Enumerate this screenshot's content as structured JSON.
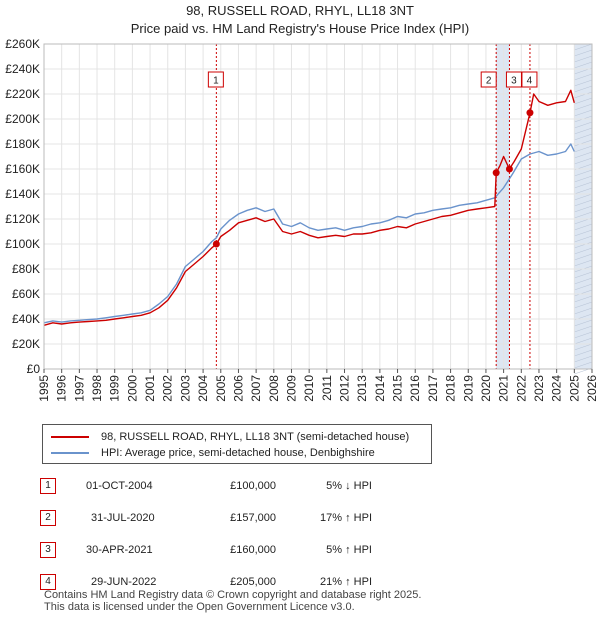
{
  "titles": {
    "line1": "98, RUSSELL ROAD, RHYL, LL18 3NT",
    "line2": "Price paid vs. HM Land Registry's House Price Index (HPI)"
  },
  "colors": {
    "price": "#cc0000",
    "hpi": "#6a93cc",
    "shade": "#dde6f2",
    "marker": "#cc0000",
    "grid": "#e4e4e4"
  },
  "legend": {
    "price_label": "98, RUSSELL ROAD, RHYL, LL18 3NT (semi-detached house)",
    "hpi_label": "HPI: Average price, semi-detached house, Denbighshire"
  },
  "transactions": [
    {
      "num": "1",
      "date": "01-OCT-2004",
      "price": "£100,000",
      "hpi": "5% ↓ HPI"
    },
    {
      "num": "2",
      "date": "31-JUL-2020",
      "price": "£157,000",
      "hpi": "17% ↑ HPI"
    },
    {
      "num": "3",
      "date": "30-APR-2021",
      "price": "£160,000",
      "hpi": "5% ↑ HPI"
    },
    {
      "num": "4",
      "date": "29-JUN-2022",
      "price": "£205,000",
      "hpi": "21% ↑ HPI"
    }
  ],
  "footer": {
    "line1": "Contains HM Land Registry data © Crown copyright and database right 2025.",
    "line2": "This data is licensed under the Open Government Licence v3.0."
  },
  "chart_data": {
    "type": "line",
    "title": "Price paid vs. HM Land Registry's House Price Index (HPI)",
    "xlabel": "",
    "ylabel": "",
    "xlim": [
      1995,
      2026
    ],
    "ylim": [
      0,
      260000
    ],
    "yticks": [
      0,
      20000,
      40000,
      60000,
      80000,
      100000,
      120000,
      140000,
      160000,
      180000,
      200000,
      220000,
      240000,
      260000
    ],
    "ytick_labels": [
      "£0",
      "£20K",
      "£40K",
      "£60K",
      "£80K",
      "£100K",
      "£120K",
      "£140K",
      "£160K",
      "£180K",
      "£200K",
      "£220K",
      "£240K",
      "£260K"
    ],
    "xticks": [
      "1995",
      "1996",
      "1997",
      "1998",
      "1999",
      "2000",
      "2001",
      "2002",
      "2003",
      "2004",
      "2005",
      "2006",
      "2007",
      "2008",
      "2009",
      "2010",
      "2011",
      "2012",
      "2013",
      "2014",
      "2015",
      "2016",
      "2017",
      "2018",
      "2019",
      "2020",
      "2021",
      "2022",
      "2023",
      "2024",
      "2025",
      "2026"
    ],
    "shaded_regions": [
      [
        2020.58,
        2021.33
      ],
      [
        2025.0,
        2026.0
      ]
    ],
    "sales": [
      {
        "label": "1",
        "x": 2004.75,
        "value": 100000
      },
      {
        "label": "2",
        "x": 2020.58,
        "value": 157000
      },
      {
        "label": "3",
        "x": 2021.33,
        "value": 160000
      },
      {
        "label": "4",
        "x": 2022.49,
        "value": 205000
      }
    ],
    "series": [
      {
        "name": "HPI: Average price, semi-detached house, Denbighshire",
        "x": [
          1995,
          1995.5,
          1996,
          1996.5,
          1997,
          1997.5,
          1998,
          1998.5,
          1999,
          1999.5,
          2000,
          2000.5,
          2001,
          2001.5,
          2002,
          2002.5,
          2003,
          2003.5,
          2004,
          2004.5,
          2004.75,
          2005,
          2005.5,
          2006,
          2006.5,
          2007,
          2007.5,
          2008,
          2008.5,
          2009,
          2009.5,
          2010,
          2010.5,
          2011,
          2011.5,
          2012,
          2012.5,
          2013,
          2013.5,
          2014,
          2014.5,
          2015,
          2015.5,
          2016,
          2016.5,
          2017,
          2017.5,
          2018,
          2018.5,
          2019,
          2019.5,
          2020,
          2020.5,
          2021,
          2021.5,
          2022,
          2022.5,
          2023,
          2023.5,
          2024,
          2024.5,
          2024.8,
          2025
        ],
        "values": [
          37000,
          38500,
          37500,
          38500,
          39000,
          39500,
          40000,
          41000,
          42000,
          43000,
          44000,
          45000,
          47000,
          52000,
          58000,
          68000,
          82000,
          88000,
          94000,
          102000,
          105000,
          112000,
          119000,
          124000,
          127000,
          129000,
          126000,
          128000,
          116000,
          114000,
          117000,
          113000,
          111000,
          112000,
          113000,
          111000,
          113000,
          114000,
          116000,
          117000,
          119000,
          122000,
          121000,
          124000,
          125000,
          127000,
          128000,
          129000,
          131000,
          132000,
          133000,
          135000,
          137000,
          145000,
          156000,
          168000,
          172000,
          174000,
          171000,
          172000,
          174000,
          180000,
          174000
        ]
      },
      {
        "name": "98, RUSSELL ROAD, RHYL, LL18 3NT (semi-detached house)",
        "x": [
          1995,
          1995.5,
          1996,
          1996.5,
          1997,
          1997.5,
          1998,
          1998.5,
          1999,
          1999.5,
          2000,
          2000.5,
          2001,
          2001.5,
          2002,
          2002.5,
          2003,
          2003.5,
          2004,
          2004.5,
          2004.75,
          2005,
          2005.5,
          2006,
          2006.5,
          2007,
          2007.5,
          2008,
          2008.5,
          2009,
          2009.5,
          2010,
          2010.5,
          2011,
          2011.5,
          2012,
          2012.5,
          2013,
          2013.5,
          2014,
          2014.5,
          2015,
          2015.5,
          2016,
          2016.5,
          2017,
          2017.5,
          2018,
          2018.5,
          2019,
          2019.5,
          2020,
          2020.5,
          2020.58,
          2020.8,
          2021,
          2021.33,
          2021.6,
          2022,
          2022.49,
          2022.7,
          2023,
          2023.5,
          2024,
          2024.5,
          2024.8,
          2025
        ],
        "values": [
          35000,
          37000,
          36000,
          37000,
          37500,
          38000,
          38500,
          39000,
          40000,
          41000,
          42000,
          43000,
          45000,
          49000,
          55000,
          65000,
          78000,
          84000,
          90000,
          97000,
          100000,
          106000,
          111000,
          117000,
          119000,
          121000,
          118000,
          120000,
          110000,
          108000,
          110000,
          107000,
          105000,
          106000,
          107000,
          106000,
          108000,
          108000,
          109000,
          111000,
          112000,
          114000,
          113000,
          116000,
          118000,
          120000,
          122000,
          123000,
          125000,
          127000,
          128000,
          129000,
          130000,
          157000,
          163000,
          170000,
          160000,
          166000,
          176000,
          205000,
          220000,
          214000,
          211000,
          213000,
          214000,
          223000,
          213000
        ]
      }
    ]
  }
}
